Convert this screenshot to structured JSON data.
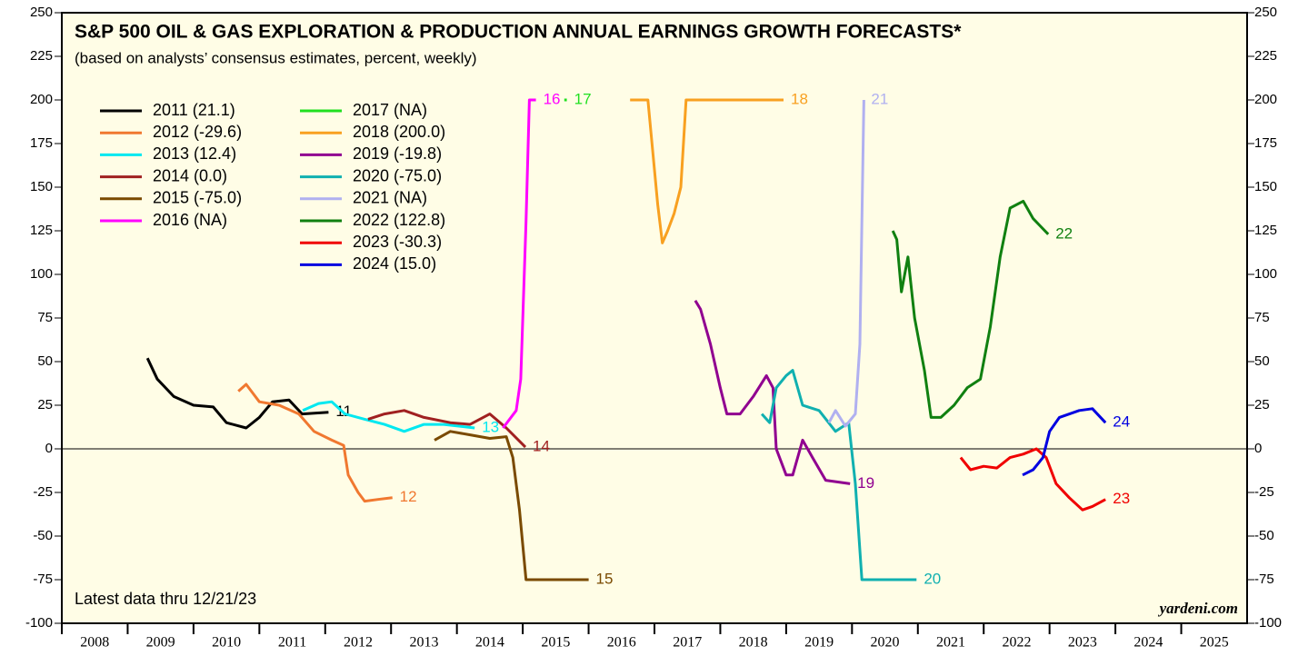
{
  "chart_data": {
    "type": "line",
    "title": "S&P 500 OIL & GAS EXPLORATION & PRODUCTION ANNUAL EARNINGS GROWTH FORECASTS*",
    "subtitle": "(based on analysts’ consensus estimates, percent, weekly)",
    "annotation": "Latest data thru 12/21/23",
    "watermark": "yardeni.com",
    "xlim": [
      2008,
      2026
    ],
    "xticks": [
      2008,
      2009,
      2010,
      2011,
      2012,
      2013,
      2014,
      2015,
      2016,
      2017,
      2018,
      2019,
      2020,
      2021,
      2022,
      2023,
      2024,
      2025
    ],
    "ylim": [
      -100,
      250
    ],
    "yticks": [
      -100,
      -75,
      -50,
      -25,
      0,
      25,
      50,
      75,
      100,
      125,
      150,
      175,
      200,
      225,
      250
    ],
    "series": [
      {
        "name": "2011 (21.1)",
        "end_label": "11",
        "color": "#000000",
        "x": [
          2009.3,
          2009.45,
          2009.7,
          2010.0,
          2010.3,
          2010.5,
          2010.8,
          2011.0,
          2011.2,
          2011.45,
          2011.65,
          2012.05
        ],
        "values": [
          52,
          40,
          30,
          25,
          24,
          15,
          12,
          18,
          27,
          28,
          20,
          21
        ]
      },
      {
        "name": "2012 (-29.6)",
        "end_label": "12",
        "color": "#f07830",
        "x": [
          2010.68,
          2010.8,
          2011.0,
          2011.3,
          2011.6,
          2011.83,
          2012.1,
          2012.28,
          2012.35,
          2012.5,
          2012.6,
          2012.8,
          2013.02
        ],
        "values": [
          33,
          37,
          27,
          25,
          20,
          10,
          5,
          2,
          -15,
          -25,
          -30,
          -29,
          -28
        ]
      },
      {
        "name": "2013 (12.4)",
        "end_label": "13",
        "color": "#00e8f0",
        "x": [
          2011.66,
          2011.9,
          2012.1,
          2012.3,
          2012.6,
          2012.9,
          2013.2,
          2013.5,
          2013.8,
          2014.27
        ],
        "values": [
          22,
          26,
          27,
          20,
          17,
          14,
          10,
          14,
          14,
          12
        ]
      },
      {
        "name": "2014 (0.0)",
        "end_label": "14",
        "color": "#a02020",
        "x": [
          2012.65,
          2012.9,
          2013.2,
          2013.5,
          2013.9,
          2014.2,
          2014.5,
          2014.75,
          2015.04
        ],
        "values": [
          17,
          20,
          22,
          18,
          15,
          14,
          20,
          12,
          1
        ]
      },
      {
        "name": "2015 (-75.0)",
        "end_label": "15",
        "color": "#7a4a00",
        "x": [
          2013.66,
          2013.9,
          2014.2,
          2014.5,
          2014.75,
          2014.85,
          2014.95,
          2015.05,
          2016.0
        ],
        "values": [
          5,
          10,
          8,
          6,
          7,
          -5,
          -35,
          -75,
          -75
        ]
      },
      {
        "name": "2016 (NA)",
        "end_label": "16",
        "color": "#ff00ff",
        "x": [
          2014.7,
          2014.9,
          2014.97,
          2015.05,
          2015.1,
          2015.2
        ],
        "values": [
          12,
          22,
          40,
          130,
          200,
          200
        ]
      },
      {
        "name": "2017 (NA)",
        "end_label": "17",
        "color": "#20e020",
        "x": [
          2015.63,
          2015.67
        ],
        "values": [
          200,
          200
        ]
      },
      {
        "name": "2018 (200.0)",
        "end_label": "18",
        "color": "#f8a020",
        "x": [
          2016.63,
          2016.9,
          2016.95,
          2017.05,
          2017.12,
          2017.2,
          2017.3,
          2017.4,
          2017.48,
          2018.96
        ],
        "values": [
          200,
          200,
          180,
          140,
          118,
          125,
          135,
          150,
          200,
          200
        ]
      },
      {
        "name": "2019 (-19.8)",
        "end_label": "19",
        "color": "#900090",
        "x": [
          2017.62,
          2017.7,
          2017.85,
          2018.0,
          2018.1,
          2018.3,
          2018.5,
          2018.7,
          2018.8,
          2018.85,
          2019.0,
          2019.1,
          2019.25,
          2019.4,
          2019.6,
          2019.97
        ],
        "values": [
          85,
          80,
          60,
          35,
          20,
          20,
          30,
          42,
          35,
          0,
          -15,
          -15,
          5,
          -5,
          -18,
          -20
        ]
      },
      {
        "name": "2020 (-75.0)",
        "end_label": "20",
        "color": "#10b0b0",
        "x": [
          2018.63,
          2018.75,
          2018.85,
          2019.0,
          2019.1,
          2019.25,
          2019.5,
          2019.75,
          2019.95,
          2020.05,
          2020.15,
          2020.98
        ],
        "values": [
          20,
          15,
          35,
          42,
          45,
          25,
          22,
          10,
          15,
          -20,
          -75,
          -75
        ]
      },
      {
        "name": "2021 (NA)",
        "end_label": "21",
        "color": "#b0b0f0",
        "x": [
          2019.65,
          2019.75,
          2019.9,
          2020.05,
          2020.12,
          2020.18
        ],
        "values": [
          15,
          22,
          13,
          20,
          60,
          200
        ]
      },
      {
        "name": "2022 (122.8)",
        "end_label": "22",
        "color": "#108010",
        "x": [
          2020.62,
          2020.68,
          2020.75,
          2020.85,
          2020.95,
          2021.1,
          2021.2,
          2021.35,
          2021.55,
          2021.75,
          2021.95,
          2022.1,
          2022.25,
          2022.4,
          2022.6,
          2022.75,
          2022.98
        ],
        "values": [
          125,
          120,
          90,
          110,
          75,
          45,
          18,
          18,
          25,
          35,
          40,
          70,
          110,
          138,
          142,
          132,
          123
        ]
      },
      {
        "name": "2023 (-30.3)",
        "end_label": "23",
        "color": "#f00000",
        "x": [
          2021.65,
          2021.8,
          2022.0,
          2022.2,
          2022.4,
          2022.6,
          2022.8,
          2022.95,
          2023.1,
          2023.3,
          2023.5,
          2023.65,
          2023.85
        ],
        "values": [
          -5,
          -12,
          -10,
          -11,
          -5,
          -3,
          0,
          -5,
          -20,
          -28,
          -35,
          -33,
          -29
        ]
      },
      {
        "name": "2024 (15.0)",
        "end_label": "24",
        "color": "#0000e0",
        "x": [
          2022.59,
          2022.75,
          2022.9,
          2023.0,
          2023.15,
          2023.45,
          2023.65,
          2023.85
        ],
        "values": [
          -15,
          -12,
          -5,
          10,
          18,
          22,
          23,
          15
        ]
      }
    ]
  }
}
